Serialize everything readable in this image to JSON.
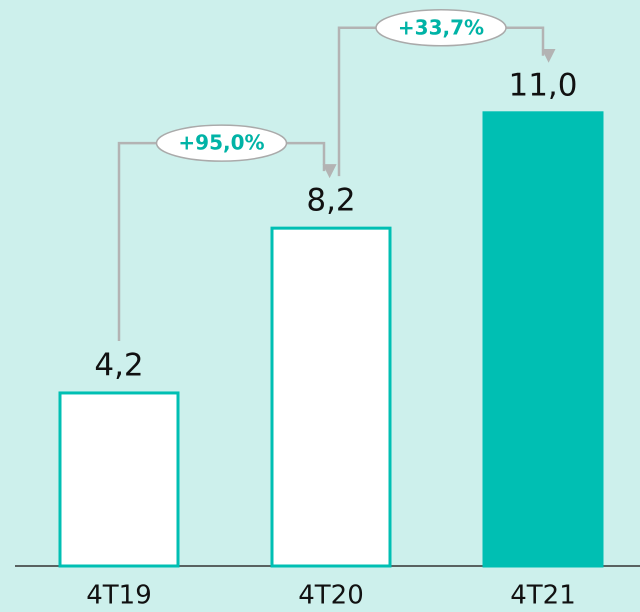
{
  "chart_data": {
    "type": "bar",
    "categories": [
      "4T19",
      "4T20",
      "4T21"
    ],
    "values": [
      4.2,
      8.2,
      11.0
    ],
    "value_labels": [
      "4,2",
      "8,2",
      "11,0"
    ],
    "colors": [
      "#ffffff",
      "#ffffff",
      "#00bfb3"
    ],
    "edge_color": "#00bfb3",
    "annotations": [
      {
        "text": "+95,0%",
        "from": 0,
        "to": 1
      },
      {
        "text": "+33,7%",
        "from": 1,
        "to": 2
      }
    ]
  }
}
